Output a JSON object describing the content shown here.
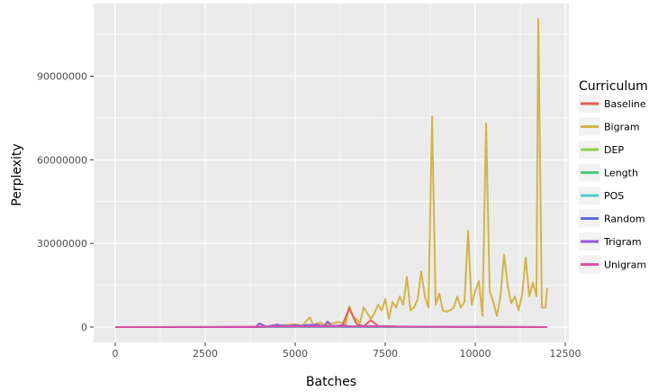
{
  "chart_data": {
    "type": "line",
    "xlabel": "Batches",
    "ylabel": "Perplexity",
    "xlim": [
      -600,
      12600
    ],
    "ylim": [
      -5500000,
      116000000
    ],
    "x_ticks": [
      0,
      2500,
      5000,
      7500,
      10000,
      12500
    ],
    "x_tick_labels": [
      "0",
      "2500",
      "5000",
      "7500",
      "10000",
      "12500"
    ],
    "y_ticks": [
      0,
      30000000,
      60000000,
      90000000
    ],
    "y_tick_labels": [
      "0",
      "30000000",
      "60000000",
      "90000000"
    ],
    "grid": true,
    "legend": {
      "title": "Curriculum",
      "position": "right"
    },
    "series": [
      {
        "name": "Baseline",
        "color": "#E15F52",
        "points": [
          [
            0,
            0
          ],
          [
            3000,
            0
          ],
          [
            6000,
            200000
          ],
          [
            6300,
            300000
          ],
          [
            6500,
            6800000
          ],
          [
            6700,
            1200000
          ],
          [
            6900,
            300000
          ],
          [
            7100,
            2500000
          ],
          [
            7300,
            400000
          ],
          [
            7600,
            300000
          ],
          [
            8000,
            100000
          ],
          [
            12000,
            0
          ]
        ]
      },
      {
        "name": "Bigram",
        "color": "#D4B349",
        "points": [
          [
            0,
            0
          ],
          [
            4000,
            0
          ],
          [
            4500,
            500000
          ],
          [
            5000,
            1000000
          ],
          [
            5200,
            500000
          ],
          [
            5400,
            3500000
          ],
          [
            5500,
            800000
          ],
          [
            5700,
            1600000
          ],
          [
            5800,
            900000
          ],
          [
            6000,
            1200000
          ],
          [
            6200,
            1800000
          ],
          [
            6400,
            1000000
          ],
          [
            6500,
            7500000
          ],
          [
            6600,
            4000000
          ],
          [
            6800,
            1500000
          ],
          [
            6900,
            7000000
          ],
          [
            7000,
            5000000
          ],
          [
            7100,
            3000000
          ],
          [
            7200,
            5000000
          ],
          [
            7300,
            8000000
          ],
          [
            7400,
            6000000
          ],
          [
            7500,
            10000000
          ],
          [
            7600,
            3000000
          ],
          [
            7700,
            9000000
          ],
          [
            7800,
            7000000
          ],
          [
            7900,
            11000000
          ],
          [
            8000,
            8000000
          ],
          [
            8100,
            18000000
          ],
          [
            8200,
            6000000
          ],
          [
            8300,
            7000000
          ],
          [
            8400,
            10000000
          ],
          [
            8500,
            20000000
          ],
          [
            8600,
            11000000
          ],
          [
            8700,
            7000000
          ],
          [
            8800,
            75500000
          ],
          [
            8900,
            8000000
          ],
          [
            9000,
            12000000
          ],
          [
            9100,
            6000000
          ],
          [
            9200,
            5500000
          ],
          [
            9300,
            6000000
          ],
          [
            9400,
            7000000
          ],
          [
            9500,
            11000000
          ],
          [
            9600,
            7000000
          ],
          [
            9700,
            9000000
          ],
          [
            9800,
            34500000
          ],
          [
            9900,
            8000000
          ],
          [
            10000,
            13000000
          ],
          [
            10100,
            16500000
          ],
          [
            10200,
            4000000
          ],
          [
            10300,
            73000000
          ],
          [
            10400,
            13000000
          ],
          [
            10500,
            9000000
          ],
          [
            10600,
            4000000
          ],
          [
            10700,
            11000000
          ],
          [
            10800,
            26000000
          ],
          [
            10900,
            15000000
          ],
          [
            11000,
            8500000
          ],
          [
            11100,
            11000000
          ],
          [
            11200,
            6000000
          ],
          [
            11300,
            11500000
          ],
          [
            11400,
            25000000
          ],
          [
            11500,
            11000000
          ],
          [
            11600,
            16000000
          ],
          [
            11700,
            11000000
          ],
          [
            11750,
            110500000
          ],
          [
            11850,
            7000000
          ],
          [
            11950,
            7000000
          ],
          [
            12000,
            14000000
          ]
        ]
      },
      {
        "name": "DEP",
        "color": "#8BD24B",
        "points": [
          [
            0,
            0
          ],
          [
            12000,
            0
          ]
        ]
      },
      {
        "name": "Length",
        "color": "#4CCB76",
        "points": [
          [
            0,
            0
          ],
          [
            12000,
            0
          ]
        ]
      },
      {
        "name": "POS",
        "color": "#50C9D4",
        "points": [
          [
            0,
            0
          ],
          [
            12000,
            0
          ]
        ]
      },
      {
        "name": "Random",
        "color": "#5B6BD6",
        "points": [
          [
            0,
            0
          ],
          [
            4000,
            0
          ],
          [
            4600,
            500000
          ],
          [
            5000,
            300000
          ],
          [
            5400,
            800000
          ],
          [
            5800,
            400000
          ],
          [
            6000,
            300000
          ],
          [
            12000,
            0
          ]
        ]
      },
      {
        "name": "Trigram",
        "color": "#9B52D9",
        "points": [
          [
            0,
            0
          ],
          [
            3900,
            0
          ],
          [
            4000,
            1300000
          ],
          [
            4200,
            200000
          ],
          [
            4500,
            900000
          ],
          [
            4700,
            200000
          ],
          [
            5000,
            700000
          ],
          [
            5300,
            300000
          ],
          [
            5600,
            900000
          ],
          [
            5800,
            300000
          ],
          [
            5900,
            2000000
          ],
          [
            6000,
            400000
          ],
          [
            6300,
            600000
          ],
          [
            6600,
            200000
          ],
          [
            7000,
            400000
          ],
          [
            7500,
            200000
          ],
          [
            8000,
            100000
          ],
          [
            12000,
            0
          ]
        ]
      },
      {
        "name": "Unigram",
        "color": "#DB52A3",
        "points": [
          [
            0,
            0
          ],
          [
            5000,
            200000
          ],
          [
            6000,
            200000
          ],
          [
            12000,
            0
          ]
        ]
      }
    ]
  }
}
